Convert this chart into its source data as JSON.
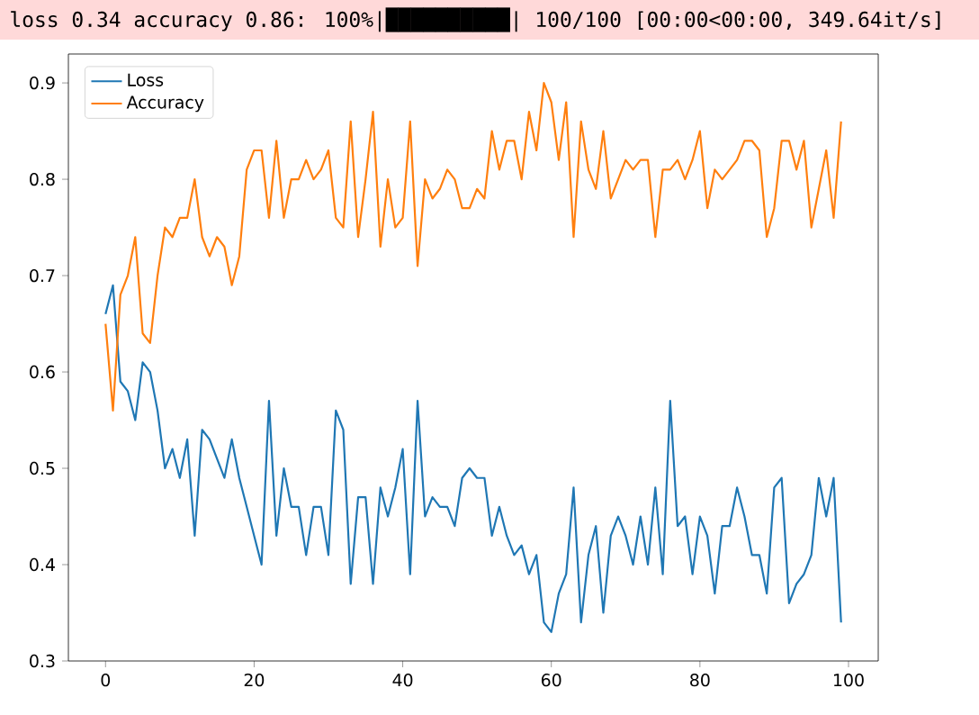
{
  "chart_data": {
    "type": "line",
    "title": "loss 0.34 accuracy 0.86: 100%|██████████| 100/100 [00:00<00:00, 349.64it/s]",
    "x": [
      0,
      1,
      2,
      3,
      4,
      5,
      6,
      7,
      8,
      9,
      10,
      11,
      12,
      13,
      14,
      15,
      16,
      17,
      18,
      19,
      20,
      21,
      22,
      23,
      24,
      25,
      26,
      27,
      28,
      29,
      30,
      31,
      32,
      33,
      34,
      35,
      36,
      37,
      38,
      39,
      40,
      41,
      42,
      43,
      44,
      45,
      46,
      47,
      48,
      49,
      50,
      51,
      52,
      53,
      54,
      55,
      56,
      57,
      58,
      59,
      60,
      61,
      62,
      63,
      64,
      65,
      66,
      67,
      68,
      69,
      70,
      71,
      72,
      73,
      74,
      75,
      76,
      77,
      78,
      79,
      80,
      81,
      82,
      83,
      84,
      85,
      86,
      87,
      88,
      89,
      90,
      91,
      92,
      93,
      94,
      95,
      96,
      97,
      98,
      99
    ],
    "series": [
      {
        "name": "Loss",
        "color": "#1f77b4",
        "values": [
          0.66,
          0.69,
          0.59,
          0.58,
          0.55,
          0.61,
          0.6,
          0.56,
          0.5,
          0.52,
          0.49,
          0.53,
          0.43,
          0.54,
          0.53,
          0.51,
          0.49,
          0.53,
          0.49,
          0.46,
          0.43,
          0.4,
          0.57,
          0.43,
          0.5,
          0.46,
          0.46,
          0.41,
          0.46,
          0.46,
          0.41,
          0.56,
          0.54,
          0.38,
          0.47,
          0.47,
          0.38,
          0.48,
          0.45,
          0.48,
          0.52,
          0.39,
          0.57,
          0.45,
          0.47,
          0.46,
          0.46,
          0.44,
          0.49,
          0.5,
          0.49,
          0.49,
          0.43,
          0.46,
          0.43,
          0.41,
          0.42,
          0.39,
          0.41,
          0.34,
          0.33,
          0.37,
          0.39,
          0.48,
          0.34,
          0.41,
          0.44,
          0.35,
          0.43,
          0.45,
          0.43,
          0.4,
          0.45,
          0.4,
          0.48,
          0.39,
          0.57,
          0.44,
          0.45,
          0.39,
          0.45,
          0.43,
          0.37,
          0.44,
          0.44,
          0.48,
          0.45,
          0.41,
          0.41,
          0.37,
          0.48,
          0.49,
          0.36,
          0.38,
          0.39,
          0.41,
          0.49,
          0.45,
          0.49,
          0.34
        ]
      },
      {
        "name": "Accuracy",
        "color": "#ff7f0e",
        "values": [
          0.65,
          0.56,
          0.68,
          0.7,
          0.74,
          0.64,
          0.63,
          0.7,
          0.75,
          0.74,
          0.76,
          0.76,
          0.8,
          0.74,
          0.72,
          0.74,
          0.73,
          0.69,
          0.72,
          0.81,
          0.83,
          0.83,
          0.76,
          0.84,
          0.76,
          0.8,
          0.8,
          0.82,
          0.8,
          0.81,
          0.83,
          0.76,
          0.75,
          0.86,
          0.74,
          0.8,
          0.87,
          0.73,
          0.8,
          0.75,
          0.76,
          0.86,
          0.71,
          0.8,
          0.78,
          0.79,
          0.81,
          0.8,
          0.77,
          0.77,
          0.79,
          0.78,
          0.85,
          0.81,
          0.84,
          0.84,
          0.8,
          0.87,
          0.83,
          0.9,
          0.88,
          0.82,
          0.88,
          0.74,
          0.86,
          0.81,
          0.79,
          0.85,
          0.78,
          0.8,
          0.82,
          0.81,
          0.82,
          0.82,
          0.74,
          0.81,
          0.81,
          0.82,
          0.8,
          0.82,
          0.85,
          0.77,
          0.81,
          0.8,
          0.81,
          0.82,
          0.84,
          0.84,
          0.83,
          0.74,
          0.77,
          0.84,
          0.84,
          0.81,
          0.84,
          0.75,
          0.79,
          0.83,
          0.76,
          0.86
        ]
      }
    ],
    "xlim": [
      -5,
      104
    ],
    "ylim": [
      0.3,
      0.93
    ],
    "xticks": [
      0,
      20,
      40,
      60,
      80,
      100
    ],
    "yticks": [
      0.3,
      0.4,
      0.5,
      0.6,
      0.7,
      0.8,
      0.9
    ],
    "legend": "top left",
    "grid": false
  }
}
